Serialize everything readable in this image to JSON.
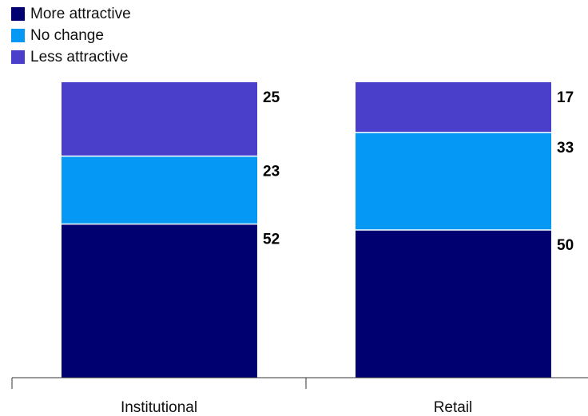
{
  "chart_data": {
    "type": "bar",
    "stacked": true,
    "orientation": "vertical",
    "categories": [
      "Institutional",
      "Retail"
    ],
    "series": [
      {
        "name": "More attractive",
        "color": "#000070",
        "values": [
          52,
          50
        ]
      },
      {
        "name": "No change",
        "color": "#0599f5",
        "values": [
          23,
          33
        ]
      },
      {
        "name": "Less attractive",
        "color": "#4a3fca",
        "values": [
          25,
          17
        ]
      }
    ],
    "ylim": [
      0,
      100
    ],
    "legend_position": "top-left",
    "grid": false
  }
}
